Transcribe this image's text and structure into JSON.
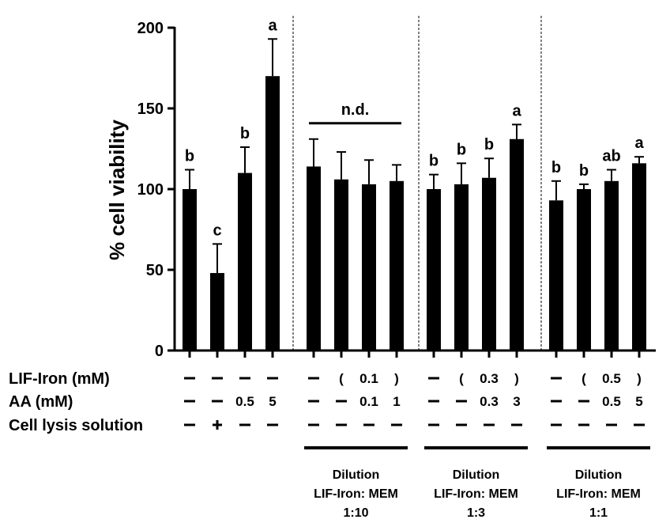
{
  "chart_data": {
    "type": "bar",
    "ylabel": "% cell viability",
    "ylim": [
      0,
      200
    ],
    "yticks": [
      "0",
      "50",
      "100",
      "150",
      "200"
    ],
    "bar_color": "#000000",
    "groups": [
      {
        "bars": [
          {
            "value": 100,
            "error": 12,
            "letter": "b"
          },
          {
            "value": 48,
            "error": 18,
            "letter": "c"
          },
          {
            "value": 110,
            "error": 16,
            "letter": "b"
          },
          {
            "value": 170,
            "error": 23,
            "letter": "a"
          }
        ]
      },
      {
        "annotation": "n.d.",
        "bars": [
          {
            "value": 114,
            "error": 17,
            "letter": ""
          },
          {
            "value": 106,
            "error": 17,
            "letter": ""
          },
          {
            "value": 103,
            "error": 15,
            "letter": ""
          },
          {
            "value": 105,
            "error": 10,
            "letter": ""
          }
        ]
      },
      {
        "bars": [
          {
            "value": 100,
            "error": 9,
            "letter": "b"
          },
          {
            "value": 103,
            "error": 13,
            "letter": "b"
          },
          {
            "value": 107,
            "error": 12,
            "letter": "b"
          },
          {
            "value": 131,
            "error": 9,
            "letter": "a"
          }
        ]
      },
      {
        "bars": [
          {
            "value": 93,
            "error": 12,
            "letter": "b"
          },
          {
            "value": 100,
            "error": 3,
            "letter": "b"
          },
          {
            "value": 105,
            "error": 7,
            "letter": "ab"
          },
          {
            "value": 116,
            "error": 4,
            "letter": "a"
          }
        ]
      }
    ],
    "rows": [
      {
        "label": "LIF-Iron (mM)",
        "cells": [
          [
            "–",
            "–",
            "–",
            "–"
          ],
          [
            "–",
            "(",
            "0.1",
            ")"
          ],
          [
            "–",
            "(",
            "0.3",
            ")"
          ],
          [
            "–",
            "(",
            "0.5",
            ")"
          ]
        ]
      },
      {
        "label": "AA (mM)",
        "cells": [
          [
            "–",
            "–",
            "0.5",
            "5"
          ],
          [
            "–",
            "–",
            "0.1",
            "1"
          ],
          [
            "–",
            "–",
            "0.3",
            "3"
          ],
          [
            "–",
            "–",
            "0.5",
            "5"
          ]
        ]
      },
      {
        "label": "Cell lysis solution",
        "cells": [
          [
            "–",
            "+",
            "–",
            "–"
          ],
          [
            "–",
            "–",
            "–",
            "–"
          ],
          [
            "–",
            "–",
            "–",
            "–"
          ],
          [
            "–",
            "–",
            "–",
            "–"
          ]
        ]
      }
    ],
    "dilutions": [
      {
        "group": 1,
        "lines": [
          "Dilution",
          "LIF-Iron: MEM",
          "1:10"
        ]
      },
      {
        "group": 2,
        "lines": [
          "Dilution",
          "LIF-Iron: MEM",
          "1:3"
        ]
      },
      {
        "group": 3,
        "lines": [
          "Dilution",
          "LIF-Iron: MEM",
          "1:1"
        ]
      }
    ]
  }
}
